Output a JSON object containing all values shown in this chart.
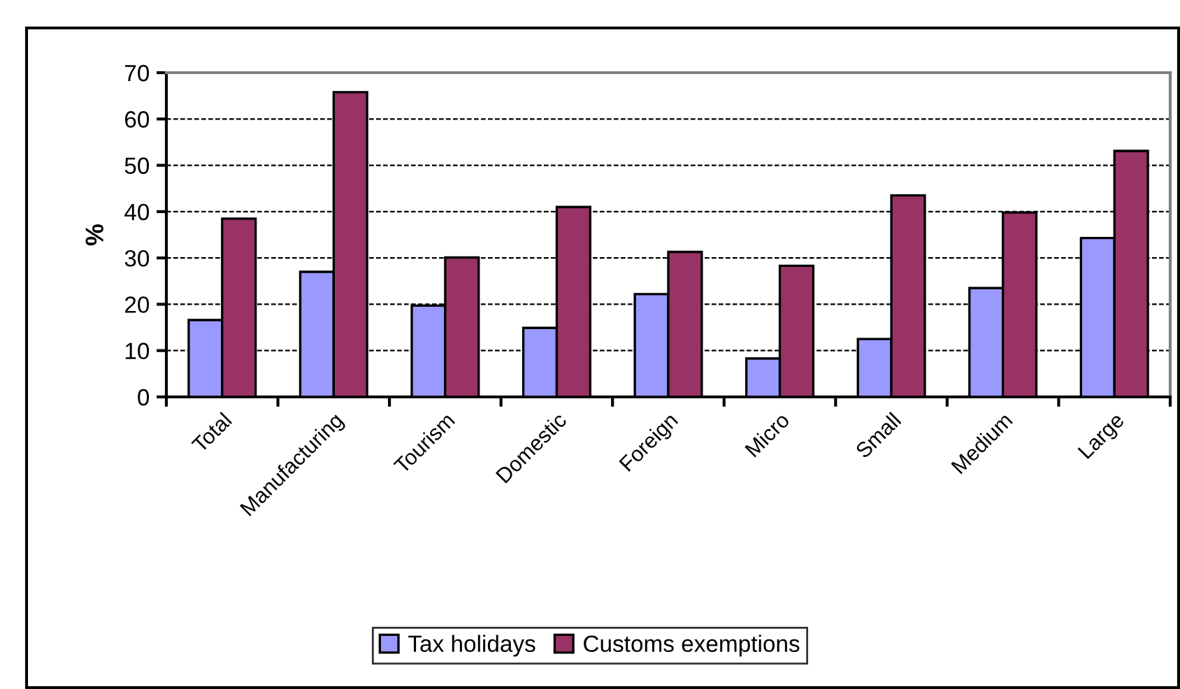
{
  "chart_data": {
    "type": "bar",
    "ylabel": "%",
    "categories": [
      "Total",
      "Manufacturing",
      "Tourism",
      "Domestic",
      "Foreign",
      "Micro",
      "Small",
      "Medium",
      "Large"
    ],
    "series": [
      {
        "name": "Tax holidays",
        "color": "#9999ff",
        "values": [
          16.6,
          27.0,
          19.7,
          14.9,
          22.2,
          8.3,
          12.5,
          23.5,
          34.3
        ]
      },
      {
        "name": "Customs exemptions",
        "color": "#993366",
        "values": [
          38.5,
          65.8,
          30.1,
          41.0,
          31.3,
          28.3,
          43.5,
          39.8,
          53.1
        ]
      }
    ],
    "ylim": [
      0,
      70
    ],
    "yticks": [
      0,
      10,
      20,
      30,
      40,
      50,
      60,
      70
    ],
    "grid": "y",
    "legend": "bottom"
  }
}
